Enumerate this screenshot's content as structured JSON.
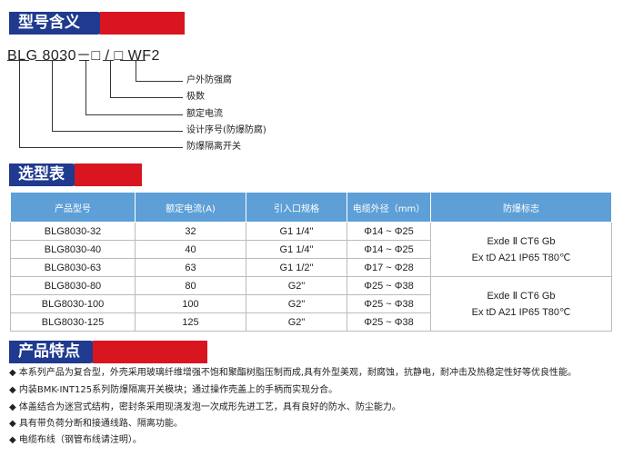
{
  "sections": {
    "model_meaning": "型号含义",
    "selection": "选型表",
    "features": "产品特点"
  },
  "model_code": "BLG 8030－□ / □ WF2",
  "model_labels": [
    "户外防强腐",
    "极数",
    "额定电流",
    "设计序号(防爆防腐)",
    "防爆隔离开关"
  ],
  "table": {
    "headers": [
      "产品型号",
      "额定电流(A)",
      "引入口规格",
      "电缆外径（mm）",
      "防爆标志"
    ],
    "rows": [
      [
        "BLG8030-32",
        "32",
        "G1 1/4\"",
        "Φ14 ~ Φ25"
      ],
      [
        "BLG8030-40",
        "40",
        "G1 1/4\"",
        "Φ14 ~ Φ25"
      ],
      [
        "BLG8030-63",
        "63",
        "G1 1/2\"",
        "Φ17 ~ Φ28"
      ],
      [
        "BLG8030-80",
        "80",
        "G2\"",
        "Φ25 ~ Φ38"
      ],
      [
        "BLG8030-100",
        "100",
        "G2\"",
        "Φ25 ~ Φ38"
      ],
      [
        "BLG8030-125",
        "125",
        "G2\"",
        "Φ25 ~ Φ38"
      ]
    ],
    "marks": [
      {
        "l1": "Exde Ⅱ CT6 Gb",
        "l2": "Ex tD A21 IP65 T80℃"
      },
      {
        "l1": "Exde Ⅱ CT6 Gb",
        "l2": "Ex tD A21 IP65 T80℃"
      }
    ]
  },
  "features": [
    "◆ 本系列产品为复合型，外壳采用玻璃纤维增强不饱和聚酯树脂压制而成,具有外型美观，耐腐蚀，抗静电，耐冲击及热稳定性好等优良性能。",
    "◆ 内装BMK-INT125系列防爆隔离开关模块；通过操作壳盖上的手柄而实现分合。",
    "◆ 体盖结合为迷宫式结构，密封条采用现浇发泡一次成形先进工艺，具有良好的防水、防尘能力。",
    "◆ 具有带负荷分断和接通线路、隔离功能。",
    "◆ 电缆布线（钢管布线请注明）。"
  ],
  "colors": {
    "blue": "#1f3a8f",
    "red": "#d9151f",
    "table_header": "#5d9fd6"
  }
}
